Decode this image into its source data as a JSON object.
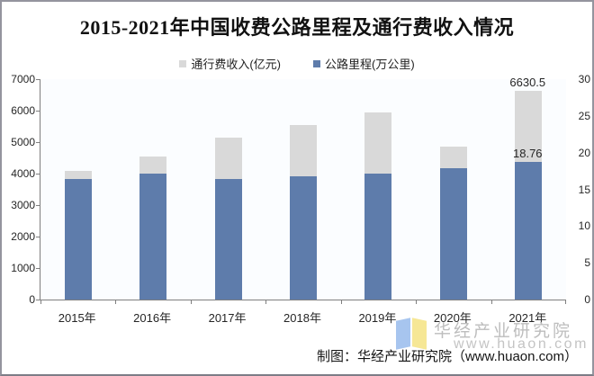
{
  "title": "2015-2021年中国收费公路里程及通行费收入情况",
  "footer": {
    "credit": "制图：华经产业研究院（www.huaon.com）"
  },
  "watermark": {
    "name": "华经产业研究院",
    "url": "www.huaon.com"
  },
  "chart_data": {
    "type": "bar",
    "title": "2015-2021年中国收费公路里程及通行费收入情况",
    "categories": [
      "2015年",
      "2016年",
      "2017年",
      "2018年",
      "2019年",
      "2020年",
      "2021年"
    ],
    "series": [
      {
        "name": "通行费收入(亿元)",
        "axis": "left",
        "color": "#d9d9d9",
        "values": [
          4097.8,
          4548.5,
          5130.2,
          5552.4,
          5937.9,
          4868.2,
          6630.5
        ]
      },
      {
        "name": "公路里程(万公里)",
        "axis": "right",
        "color": "#5e7cab",
        "values": [
          16.44,
          17.11,
          16.37,
          16.81,
          17.11,
          17.92,
          18.76
        ]
      }
    ],
    "left_axis": {
      "min": 0,
      "max": 7000,
      "ticks": [
        0,
        1000,
        2000,
        3000,
        4000,
        5000,
        6000,
        7000
      ]
    },
    "right_axis": {
      "min": 0,
      "max": 30,
      "ticks": [
        0,
        5,
        10,
        15,
        20,
        25,
        30
      ]
    },
    "annotations": [
      {
        "text": "6630.5",
        "category": "2021年",
        "series": "通行费收入(亿元)"
      },
      {
        "text": "18.76",
        "category": "2021年",
        "series": "公路里程(万公里)"
      }
    ],
    "legend_position": "top",
    "grid": false
  }
}
